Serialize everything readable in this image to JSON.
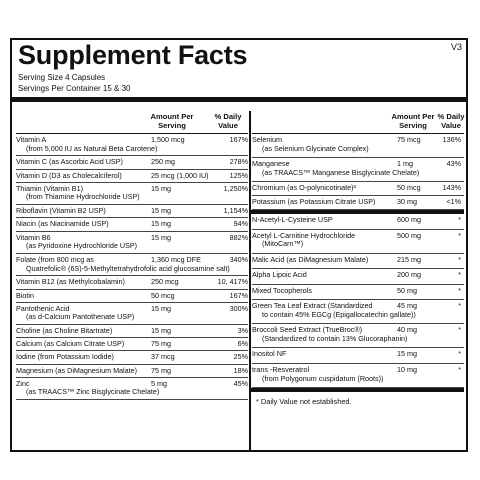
{
  "label": {
    "title": "Supplement Facts",
    "version": "V3",
    "serving_size": "Serving Size  4 Capsules",
    "servings_per_container": "Servings Per Container  15 & 30",
    "col_amount": "Amount Per Serving",
    "col_dv": "% Daily Value",
    "footnote": "*  Daily Value not established."
  },
  "left_rows": [
    {
      "name": "Vitamin A",
      "sub": "(from 5,000 IU as Natural Beta Carotene)",
      "amount": "1,500 mcg",
      "dv": "167%"
    },
    {
      "name": "Vitamin C (as Ascorbic Acid USP)",
      "sub": "",
      "amount": "250 mg",
      "dv": "278%"
    },
    {
      "name": "Vitamin D (D3 as Cholecalciferol)",
      "sub": "",
      "amount": "25 mcg (1,000 IU)",
      "dv": "125%"
    },
    {
      "name": "Thiamin (Vitamin B1)",
      "sub": "(from Thiamine Hydrochloride USP)",
      "amount": "15 mg",
      "dv": "1,250%"
    },
    {
      "name": "Riboflavin (Vitamin B2 USP)",
      "sub": "",
      "amount": "15 mg",
      "dv": "1,154%"
    },
    {
      "name": "Niacin (as Niacinamide USP)",
      "sub": "",
      "amount": "15 mg",
      "dv": "94%"
    },
    {
      "name": "Vitamin B6",
      "sub": "(as Pyridoxine Hydrochloride USP)",
      "amount": "15 mg",
      "dv": "882%"
    },
    {
      "name": "Folate (from 800 mcg as",
      "sub": "Quatrefolic® (6S)-5-Methyltetrahydrofolic acid glucosamine salt)",
      "amount": "1,360 mcg DFE",
      "dv": "340%"
    },
    {
      "name": "Vitamin B12 (as Methylcobalamin)",
      "sub": "",
      "amount": "250 mcg",
      "dv": "10, 417%"
    },
    {
      "name": "Biotin",
      "sub": "",
      "amount": "50 mcg",
      "dv": "167%"
    },
    {
      "name": "Pantothenic Acid",
      "sub": "(as d-Calcium Pantothenate USP)",
      "amount": "15 mg",
      "dv": "300%"
    },
    {
      "name": "Choline (as Choline Bitartrate)",
      "sub": "",
      "amount": "15 mg",
      "dv": "3%"
    },
    {
      "name": "Calcium (as Calcium Citrate USP)",
      "sub": "",
      "amount": "75 mg",
      "dv": "6%"
    },
    {
      "name": "Iodine (from Potassium Iodide)",
      "sub": "",
      "amount": "37 mcg",
      "dv": "25%"
    },
    {
      "name": "Magnesium (as DiMagnesium Malate)",
      "sub": "",
      "amount": "75 mg",
      "dv": "18%"
    },
    {
      "name": "Zinc",
      "sub": "(as TRAACS™ Zinc Bisglycinate Chelate)",
      "amount": "5 mg",
      "dv": "45%"
    }
  ],
  "right_rows_top": [
    {
      "name": "Selenium",
      "sub": "(as Selenium Glycinate Complex)",
      "amount": "75 mcg",
      "dv": "136%"
    },
    {
      "name": "Manganese",
      "sub": "(as TRAACS™ Manganese Bisglycinate Chelate)",
      "amount": "1 mg",
      "dv": "43%"
    },
    {
      "name": "Chromium (as O-polynicotinate)²",
      "sub": "",
      "amount": "50 mcg",
      "dv": "143%"
    },
    {
      "name": "Potassium (as Potassium Citrate USP)",
      "sub": "",
      "amount": "30 mg",
      "dv": "<1%"
    }
  ],
  "right_rows_bottom": [
    {
      "name": "N-Acetyl-L-Cysteine USP",
      "sub": "",
      "amount": "600 mg",
      "dv": "*"
    },
    {
      "name": "Acetyl L-Carnitine Hydrochloride",
      "sub": "(MitoCarn™)",
      "amount": "500 mg",
      "dv": "*"
    },
    {
      "name": "Malic Acid (as DiMagnesium Malate)",
      "sub": "",
      "amount": "215 mg",
      "dv": "*"
    },
    {
      "name": "Alpha Lipoic Acid",
      "sub": "",
      "amount": "200 mg",
      "dv": "*"
    },
    {
      "name": "Mixed Tocopherols",
      "sub": "",
      "amount": "50 mg",
      "dv": "*"
    },
    {
      "name": "Green Tea Leaf Extract (Standardized",
      "sub": "to contain 45% EGCg (Epigallocatechin gallate))",
      "amount": "45 mg",
      "dv": "*"
    },
    {
      "name": "Broccoli Seed Extract (TrueBroc®)",
      "sub": "(Standardized to contain 13% Glucoraphanin)",
      "amount": "40 mg",
      "dv": "*"
    },
    {
      "name": "Inositol NF",
      "sub": "",
      "amount": "15 mg",
      "dv": "*"
    },
    {
      "name": "trans -Resveratrol",
      "sub": "(from Polygonum cuspidatum (Roots))",
      "amount": "10 mg",
      "dv": "*"
    }
  ]
}
